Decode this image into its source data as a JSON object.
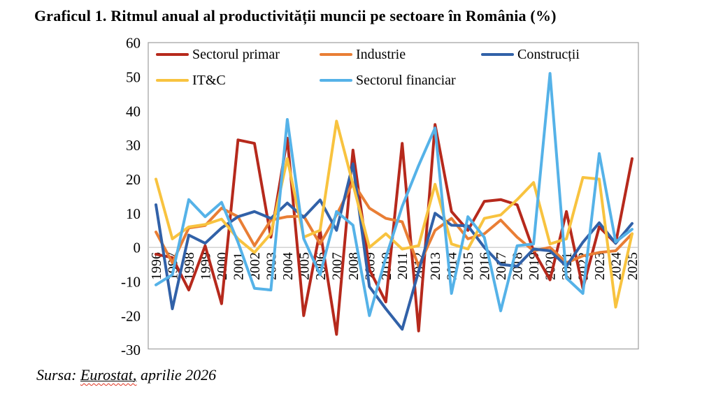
{
  "page": {
    "title": "Graficul 1. Ritmul anual al productivității muncii pe sectoare în România (%)",
    "source": {
      "prefix": "Sursa: ",
      "underlined": "Eurostat,",
      "suffix": " aprilie 2026"
    }
  },
  "chart_data": {
    "type": "line",
    "title": "Graficul 1. Ritmul anual al productivității muncii pe sectoare în România (%)",
    "categories": [
      "1996",
      "1997",
      "1998",
      "1999",
      "2000",
      "2001",
      "2002",
      "2003",
      "2004",
      "2005",
      "2006",
      "2007",
      "2008",
      "2009",
      "2010",
      "2011",
      "2012",
      "2013",
      "2014",
      "2015",
      "2016",
      "2017",
      "2018",
      "2019",
      "2020",
      "2021",
      "2022",
      "2023",
      "2024",
      "2025"
    ],
    "series": [
      {
        "name": "Sectorul primar",
        "color": "#B6291C",
        "values": [
          -2,
          -3,
          -12.5,
          0.5,
          -16.5,
          31.5,
          30.5,
          3,
          32,
          -20,
          5,
          -25.5,
          28.5,
          -6.5,
          -16,
          30.5,
          -24.5,
          36,
          10.5,
          5,
          13.5,
          14,
          12.5,
          -1,
          -9.5,
          10.5,
          -12,
          6,
          1.2,
          26
        ]
      },
      {
        "name": "Industrie",
        "color": "#E97E35",
        "values": [
          4.5,
          -4.5,
          5.7,
          6.4,
          11.5,
          9,
          0.5,
          8,
          9,
          9.2,
          1,
          9.5,
          19,
          11.5,
          8.5,
          7.5,
          -5.5,
          5,
          8.5,
          2.5,
          4,
          8,
          3,
          -1,
          0,
          -4.5,
          -2.5,
          -1.5,
          -1,
          4
        ]
      },
      {
        "name": "Construcții",
        "color": "#3161A8",
        "values": [
          12.5,
          -18,
          3.6,
          1.2,
          5.7,
          9,
          10.5,
          8.5,
          13,
          8.8,
          13.9,
          5,
          24.5,
          -11.5,
          -18,
          -24,
          -7,
          10,
          6.5,
          6.3,
          0,
          -5,
          -5.5,
          -0.5,
          -1,
          -5.5,
          1.5,
          7.2,
          1.2,
          7
        ]
      },
      {
        "name": "IT&C",
        "color": "#F8C33F",
        "values": [
          20,
          2.5,
          6,
          6.7,
          8.3,
          2.5,
          -1.5,
          4,
          26,
          3,
          5,
          37,
          18.5,
          0,
          4,
          -0.5,
          0.5,
          18.5,
          1,
          -0.5,
          8.5,
          9.5,
          14,
          19,
          1,
          2.5,
          20.5,
          20,
          -17.5,
          4
        ]
      },
      {
        "name": "Sectorul financiar",
        "color": "#55B2E8",
        "values": [
          -11,
          -8,
          14,
          9,
          13.2,
          1.5,
          -12,
          -12.5,
          37.5,
          2.6,
          -8,
          10.5,
          6.5,
          -20,
          -3,
          12,
          24,
          35,
          -13.5,
          9,
          2.9,
          -18.6,
          0.5,
          1,
          51,
          -9,
          -13.5,
          27.5,
          1.6,
          5.3
        ]
      }
    ],
    "xlabel": "",
    "ylabel": "",
    "ylim": [
      -30,
      60
    ],
    "yticks": [
      "60",
      "50",
      "40",
      "30",
      "20",
      "10",
      "0",
      "-10",
      "-20",
      "-30"
    ],
    "grid": "zero-line-only",
    "legend_position": "top-inside-two-rows",
    "plot_border_color": "#A6A6A6",
    "zero_line_color": "#C9C9C9"
  }
}
